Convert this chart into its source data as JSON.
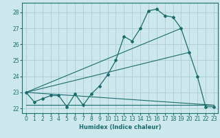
{
  "xlabel": "Humidex (Indice chaleur)",
  "xlim": [
    -0.5,
    23.5
  ],
  "ylim": [
    21.7,
    28.6
  ],
  "xticks": [
    0,
    1,
    2,
    3,
    4,
    5,
    6,
    7,
    8,
    9,
    10,
    11,
    12,
    13,
    14,
    15,
    16,
    17,
    18,
    19,
    20,
    21,
    22,
    23
  ],
  "yticks": [
    22,
    23,
    24,
    25,
    26,
    27,
    28
  ],
  "bg_color": "#cce8ec",
  "grid_color": "#b0d0d4",
  "line_color": "#1a6b6b",
  "series1": [
    [
      0,
      23.0
    ],
    [
      1,
      22.4
    ],
    [
      2,
      22.6
    ],
    [
      3,
      22.8
    ],
    [
      4,
      22.8
    ],
    [
      5,
      22.1
    ],
    [
      6,
      22.9
    ],
    [
      7,
      22.2
    ],
    [
      8,
      22.9
    ],
    [
      9,
      23.4
    ],
    [
      10,
      24.1
    ],
    [
      11,
      25.0
    ],
    [
      12,
      26.5
    ],
    [
      13,
      26.2
    ],
    [
      14,
      27.0
    ],
    [
      15,
      28.1
    ],
    [
      16,
      28.2
    ],
    [
      17,
      27.8
    ],
    [
      18,
      27.7
    ],
    [
      19,
      27.0
    ],
    [
      20,
      25.5
    ],
    [
      21,
      24.0
    ],
    [
      22,
      22.1
    ],
    [
      23,
      22.1
    ]
  ],
  "series2_x": [
    0,
    23
  ],
  "series2_y": [
    23.0,
    22.2
  ],
  "series3_x": [
    0,
    20
  ],
  "series3_y": [
    23.0,
    25.5
  ],
  "series4_x": [
    0,
    23
  ],
  "series4_y": [
    22.2,
    22.2
  ],
  "series5_x": [
    0,
    19
  ],
  "series5_y": [
    23.0,
    27.0
  ]
}
